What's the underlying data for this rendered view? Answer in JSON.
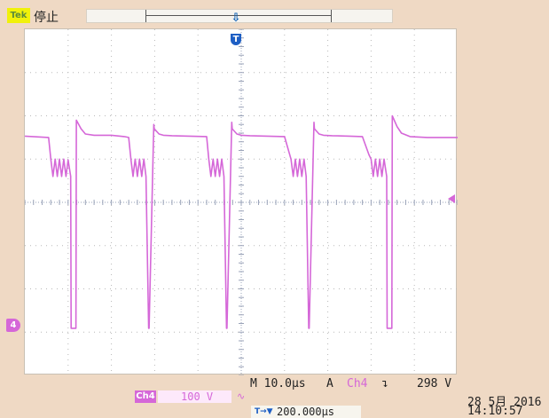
{
  "header": {
    "run_badge": "Tek",
    "run_status": "停止",
    "trigger_position_icon": "trigger-position-marker",
    "trigger_marker_icon": "trigger-point-marker"
  },
  "channel": {
    "marker": "4",
    "color": "#d567d8",
    "label": "Ch4",
    "scale": "100 V",
    "coupling_symbol": "∿"
  },
  "timebase": {
    "label": "M 10.0μs",
    "trigger_mode": "A",
    "trigger_source": "Ch4",
    "trigger_slope": "↴",
    "trigger_level": "298 V",
    "horizontal_position": "200.000μs"
  },
  "datetime": {
    "date": "28 5月 2016",
    "time": "14:10:57"
  },
  "colors": {
    "background": "#efd9c4",
    "screen": "#ffffff",
    "trace": "#d567d8",
    "accent": "#1e5fc4"
  },
  "chart_data": {
    "type": "line",
    "title": "",
    "xlabel": "",
    "ylabel": "",
    "x_divisions": 10,
    "y_divisions": 8,
    "grid": true,
    "xlim": [
      -50,
      50
    ],
    "ylim": [
      -400,
      400
    ],
    "x_unit": "μs",
    "y_unit": "V",
    "series": [
      {
        "x": [
          -50,
          -44.5,
          -44,
          -43.5,
          -43,
          -42.5,
          -42,
          -41.5,
          -41,
          -40.5,
          -40,
          -39.4,
          -39.3,
          -38.2,
          -38.1,
          -37,
          -36,
          -34,
          -30,
          -27,
          -26,
          -25.5,
          -25,
          -24.5,
          -24,
          -23.5,
          -23,
          -22.5,
          -22,
          -21.4,
          -21.3,
          -20.2,
          -20.1,
          -19,
          -18,
          -16,
          -12,
          -8,
          -7.5,
          -7,
          -6.5,
          -6,
          -5.5,
          -5,
          -4.5,
          -4,
          -3.4,
          -3.3,
          -2.2,
          -2.1,
          -1,
          0,
          2,
          6,
          10,
          11.5,
          12,
          12.5,
          13,
          13.5,
          14,
          14.5,
          15,
          15.6,
          15.7,
          16.8,
          16.9,
          18,
          19,
          21,
          25,
          28,
          29.5,
          30,
          30.5,
          31,
          31.5,
          32,
          32.5,
          33,
          33.6,
          33.7,
          34.8,
          34.9,
          36,
          37,
          39,
          43,
          47,
          50
        ],
        "y": [
          153,
          150,
          100,
          60,
          100,
          60,
          100,
          60,
          100,
          60,
          98,
          60,
          -291,
          -291,
          190,
          170,
          158,
          155,
          155,
          152,
          150,
          100,
          60,
          100,
          60,
          100,
          60,
          100,
          60,
          -291,
          -291,
          180,
          170,
          158,
          155,
          154,
          153,
          152,
          100,
          60,
          100,
          60,
          100,
          60,
          100,
          60,
          -291,
          -291,
          185,
          170,
          158,
          155,
          154,
          153,
          152,
          100,
          60,
          100,
          60,
          100,
          60,
          100,
          60,
          -291,
          -291,
          185,
          170,
          158,
          155,
          154,
          153,
          152,
          110,
          100,
          60,
          100,
          60,
          100,
          60,
          100,
          60,
          -291,
          -291,
          200,
          175,
          160,
          152,
          150,
          150,
          150
        ]
      }
    ]
  }
}
